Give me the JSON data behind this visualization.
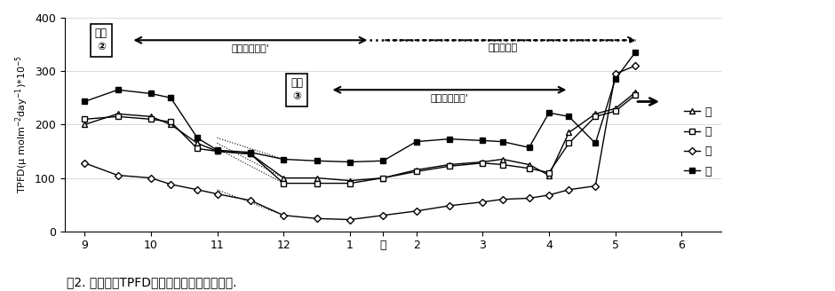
{
  "title": "図2. 光遮断がTPFDの季節変化に与える影響.",
  "background_color": "#ffffff",
  "xlim": [
    8.7,
    18.6
  ],
  "ylim": [
    0,
    400
  ],
  "yticks": [
    0,
    100,
    200,
    300,
    400
  ],
  "xtick_positions": [
    9,
    10,
    11,
    12,
    13,
    13.5,
    14,
    15,
    16,
    17,
    18
  ],
  "xtick_labels": [
    "9",
    "10",
    "11",
    "12",
    "1",
    "月",
    "2",
    "3",
    "4",
    "5",
    "6"
  ],
  "x_data": [
    9.0,
    9.5,
    10.0,
    10.3,
    10.7,
    11.0,
    11.5,
    12.0,
    12.5,
    13.0,
    13.5,
    14.0,
    14.5,
    15.0,
    15.3,
    15.7,
    16.0,
    16.3,
    16.7,
    17.0,
    17.3
  ],
  "east": [
    200,
    220,
    215,
    200,
    165,
    150,
    145,
    100,
    100,
    95,
    100,
    115,
    125,
    130,
    135,
    125,
    105,
    185,
    220,
    230,
    260
  ],
  "west": [
    210,
    215,
    210,
    205,
    155,
    150,
    145,
    90,
    90,
    90,
    100,
    112,
    122,
    128,
    125,
    118,
    110,
    165,
    215,
    225,
    255
  ],
  "south": [
    128,
    105,
    100,
    88,
    78,
    70,
    58,
    30,
    24,
    22,
    30,
    38,
    48,
    55,
    60,
    62,
    68,
    78,
    85,
    295,
    310
  ],
  "north": [
    243,
    265,
    258,
    250,
    175,
    152,
    148,
    135,
    132,
    130,
    132,
    168,
    173,
    170,
    168,
    157,
    222,
    215,
    165,
    285,
    335
  ],
  "legend_labels": [
    "東",
    "西",
    "南",
    "北"
  ],
  "type2_label": "作型\n②",
  "type3_label": "作型\n③",
  "mero_label": "メロウローズ'",
  "tsukushi_label": "つくしの雪",
  "ylabel": "TPFD(μ molm⁻²day⁻¹)*10⁻⁵"
}
